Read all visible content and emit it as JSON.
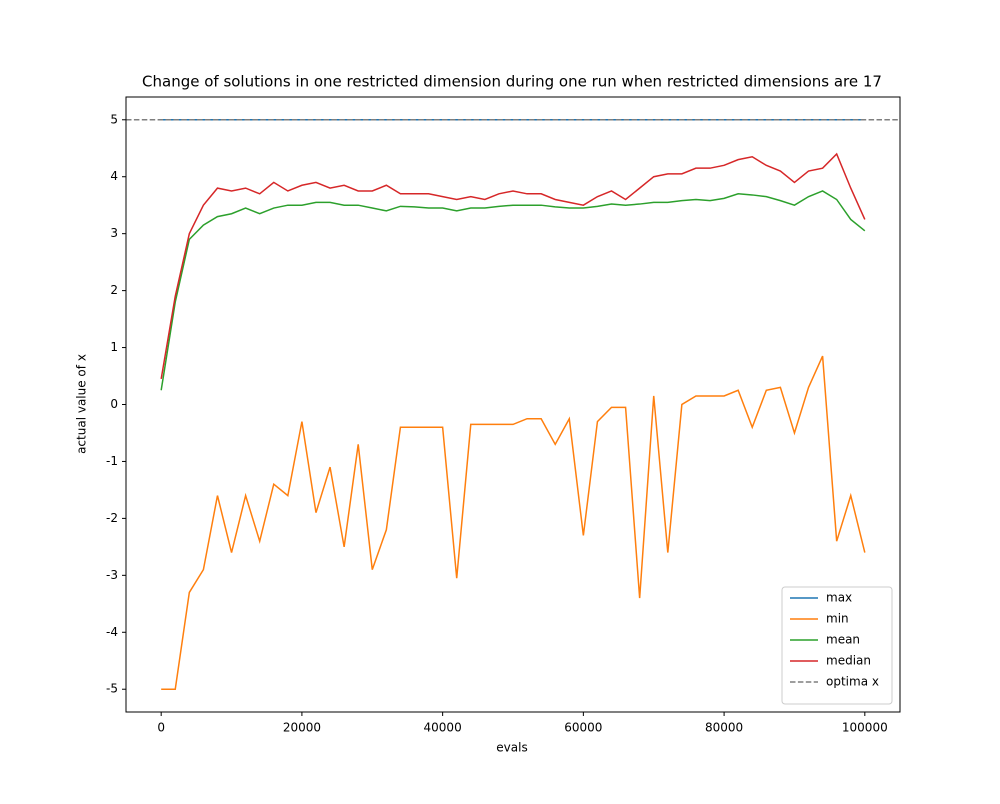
{
  "chart_data": {
    "type": "line",
    "title": "Change of solutions in one restricted dimension during one run when restricted dimensions are 17",
    "x_label": "evals",
    "y_label": "actual value of x",
    "x": [
      0,
      2000,
      4000,
      6000,
      8000,
      10000,
      12000,
      14000,
      16000,
      18000,
      20000,
      22000,
      24000,
      26000,
      28000,
      30000,
      32000,
      34000,
      36000,
      38000,
      40000,
      42000,
      44000,
      46000,
      48000,
      50000,
      52000,
      54000,
      56000,
      58000,
      60000,
      62000,
      64000,
      66000,
      68000,
      70000,
      72000,
      74000,
      76000,
      78000,
      80000,
      82000,
      84000,
      86000,
      88000,
      90000,
      92000,
      94000,
      96000,
      98000,
      100000
    ],
    "series": [
      {
        "name": "max",
        "color": "#1f77b4",
        "values": [
          5,
          5,
          5,
          5,
          5,
          5,
          5,
          5,
          5,
          5,
          5,
          5,
          5,
          5,
          5,
          5,
          5,
          5,
          5,
          5,
          5,
          5,
          5,
          5,
          5,
          5,
          5,
          5,
          5,
          5,
          5,
          5,
          5,
          5,
          5,
          5,
          5,
          5,
          5,
          5,
          5,
          5,
          5,
          5,
          5,
          5,
          5,
          5,
          5,
          5,
          5
        ]
      },
      {
        "name": "min",
        "color": "#ff7f0e",
        "values": [
          -5,
          -5,
          -3.3,
          -2.9,
          -1.6,
          -2.6,
          -1.6,
          -2.4,
          -1.4,
          -1.6,
          -0.3,
          -1.9,
          -1.1,
          -2.5,
          -0.7,
          -2.9,
          -2.2,
          -0.4,
          -0.4,
          -0.4,
          -0.4,
          -3.05,
          -0.35,
          -0.35,
          -0.35,
          -0.35,
          -0.25,
          -0.25,
          -0.7,
          -0.25,
          -2.3,
          -0.3,
          -0.05,
          -0.05,
          -3.4,
          0.15,
          -2.6,
          0.0,
          0.15,
          0.15,
          0.15,
          0.25,
          -0.4,
          0.25,
          0.3,
          -0.5,
          0.3,
          0.85,
          -2.4,
          -1.6,
          -2.6
        ]
      },
      {
        "name": "mean",
        "color": "#2ca02c",
        "values": [
          0.25,
          1.8,
          2.9,
          3.15,
          3.3,
          3.35,
          3.45,
          3.35,
          3.45,
          3.5,
          3.5,
          3.55,
          3.55,
          3.5,
          3.5,
          3.45,
          3.4,
          3.48,
          3.47,
          3.45,
          3.45,
          3.4,
          3.45,
          3.45,
          3.48,
          3.5,
          3.5,
          3.5,
          3.47,
          3.45,
          3.45,
          3.48,
          3.52,
          3.5,
          3.52,
          3.55,
          3.55,
          3.58,
          3.6,
          3.58,
          3.62,
          3.7,
          3.68,
          3.65,
          3.58,
          3.5,
          3.65,
          3.75,
          3.6,
          3.25,
          3.05
        ]
      },
      {
        "name": "median",
        "color": "#d62728",
        "values": [
          0.45,
          1.9,
          3.0,
          3.5,
          3.8,
          3.75,
          3.8,
          3.7,
          3.9,
          3.75,
          3.85,
          3.9,
          3.8,
          3.85,
          3.75,
          3.75,
          3.85,
          3.7,
          3.7,
          3.7,
          3.65,
          3.6,
          3.65,
          3.6,
          3.7,
          3.75,
          3.7,
          3.7,
          3.6,
          3.55,
          3.5,
          3.65,
          3.75,
          3.6,
          3.8,
          4.0,
          4.05,
          4.05,
          4.15,
          4.15,
          4.2,
          4.3,
          4.35,
          4.2,
          4.1,
          3.9,
          4.1,
          4.15,
          4.4,
          3.8,
          3.25
        ]
      }
    ],
    "hlines": [
      {
        "name": "optima x",
        "value": 5,
        "color": "#7f7f7f",
        "dashed": true
      }
    ],
    "xlim": [
      -5000,
      105000
    ],
    "ylim": [
      -5.4,
      5.4
    ],
    "xticks": [
      0,
      20000,
      40000,
      60000,
      80000,
      100000
    ],
    "yticks": [
      -5,
      -4,
      -3,
      -2,
      -1,
      0,
      1,
      2,
      3,
      4,
      5
    ],
    "legend": "lower right"
  }
}
